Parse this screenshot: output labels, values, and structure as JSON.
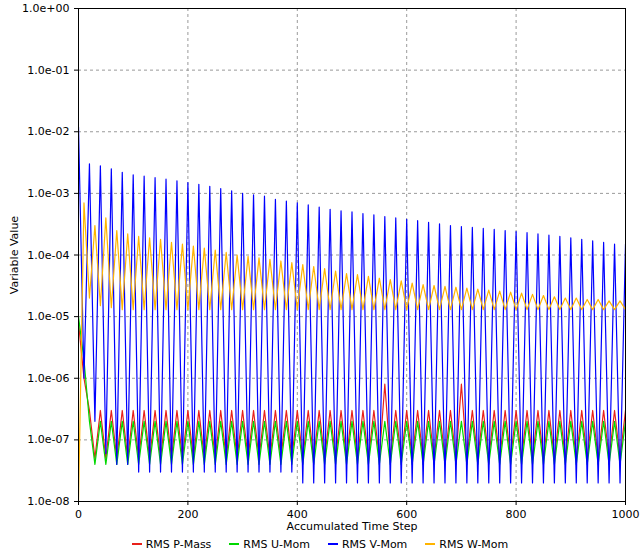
{
  "chart_data": {
    "type": "line",
    "x_label": "Accumulated Time Step",
    "y_label": "Variable Value",
    "log": "y",
    "grid": true,
    "legend": "bottom",
    "xlim": [
      0,
      1000
    ],
    "ylim": [
      1e-08,
      1
    ],
    "xticks": [
      0,
      200,
      400,
      600,
      800,
      1000
    ],
    "yticks": [
      {
        "value": 1e-08,
        "label": "1.0e-08"
      },
      {
        "value": 1e-07,
        "label": "1.0e-07"
      },
      {
        "value": 1e-06,
        "label": "1.0e-06"
      },
      {
        "value": 1e-05,
        "label": "1.0e-05"
      },
      {
        "value": 0.0001,
        "label": "1.0e-04"
      },
      {
        "value": 0.001,
        "label": "1.0e-03"
      },
      {
        "value": 0.01,
        "label": "1.0e-02"
      },
      {
        "value": 0.1,
        "label": "1.0e-01"
      },
      {
        "value": 1,
        "label": "1.0e+00"
      }
    ],
    "x": [
      0,
      10,
      20,
      30,
      40,
      50,
      60,
      70,
      80,
      90,
      100,
      110,
      120,
      130,
      140,
      150,
      160,
      170,
      180,
      190,
      200,
      210,
      220,
      230,
      240,
      250,
      260,
      270,
      280,
      290,
      300,
      310,
      320,
      330,
      340,
      350,
      360,
      370,
      380,
      390,
      400,
      410,
      420,
      430,
      440,
      450,
      460,
      470,
      480,
      490,
      500,
      510,
      520,
      530,
      540,
      550,
      560,
      570,
      580,
      590,
      600,
      610,
      620,
      630,
      640,
      650,
      660,
      670,
      680,
      690,
      700,
      710,
      720,
      730,
      740,
      750,
      760,
      770,
      780,
      790,
      800,
      810,
      820,
      830,
      840,
      850,
      860,
      870,
      880,
      890,
      900,
      910,
      920,
      930,
      940,
      950,
      960,
      970,
      980,
      990,
      1000
    ],
    "series": [
      {
        "name": "RMS P-Mass",
        "color": "#e8201a",
        "values": [
          8e-06,
          1e-06,
          3e-07,
          5e-08,
          3e-07,
          5e-08,
          3e-07,
          5e-08,
          3e-07,
          5e-08,
          3e-07,
          5e-08,
          3e-07,
          5e-08,
          3e-07,
          5e-08,
          3e-07,
          5e-08,
          3e-07,
          5e-08,
          3e-07,
          5e-08,
          3e-07,
          5e-08,
          3e-07,
          5e-08,
          3e-07,
          5e-08,
          3e-07,
          5e-08,
          3e-07,
          5e-08,
          3e-07,
          5e-08,
          3e-07,
          5e-08,
          3e-07,
          5e-08,
          3e-07,
          5e-08,
          3e-07,
          5e-08,
          3e-07,
          5e-08,
          3e-07,
          5e-08,
          3e-07,
          5e-08,
          3e-07,
          5e-08,
          3e-07,
          5e-08,
          3e-07,
          5e-08,
          3e-07,
          5e-08,
          8e-07,
          5e-08,
          3e-07,
          5e-08,
          3e-07,
          5e-08,
          3e-07,
          5e-08,
          3e-07,
          5e-08,
          3e-07,
          5e-08,
          3e-07,
          5e-08,
          8e-07,
          5e-08,
          3e-07,
          5e-08,
          3e-07,
          5e-08,
          3e-07,
          5e-08,
          3e-07,
          5e-08,
          3e-07,
          5e-08,
          3e-07,
          5e-08,
          3e-07,
          5e-08,
          3e-07,
          5e-08,
          3e-07,
          5e-08,
          3e-07,
          5e-08,
          3e-07,
          5e-08,
          3e-07,
          5e-08,
          3e-07,
          5e-08,
          3e-07,
          5e-08,
          3e-07
        ]
      },
      {
        "name": "RMS U-Mom",
        "color": "#00d800",
        "values": [
          1e-05,
          2e-06,
          2e-07,
          4e-08,
          2e-07,
          4e-08,
          2e-07,
          4e-08,
          2e-07,
          4e-08,
          2e-07,
          4e-08,
          2e-07,
          4e-08,
          2e-07,
          4e-08,
          2e-07,
          4e-08,
          2e-07,
          4e-08,
          2e-07,
          4e-08,
          2e-07,
          4e-08,
          2e-07,
          4e-08,
          2e-07,
          4e-08,
          2e-07,
          4e-08,
          2e-07,
          4e-08,
          2e-07,
          4e-08,
          2e-07,
          4e-08,
          2e-07,
          4e-08,
          2e-07,
          4e-08,
          2e-07,
          4e-08,
          2e-07,
          4e-08,
          2e-07,
          4e-08,
          2e-07,
          4e-08,
          2e-07,
          4e-08,
          2e-07,
          4e-08,
          2e-07,
          4e-08,
          2e-07,
          4e-08,
          2e-07,
          4e-08,
          2e-07,
          4e-08,
          2e-07,
          4e-08,
          2e-07,
          4e-08,
          2e-07,
          4e-08,
          2e-07,
          4e-08,
          2e-07,
          4e-08,
          2e-07,
          4e-08,
          2e-07,
          4e-08,
          2e-07,
          4e-08,
          2e-07,
          4e-08,
          2e-07,
          4e-08,
          2e-07,
          4e-08,
          2e-07,
          4e-08,
          2e-07,
          4e-08,
          2e-07,
          4e-08,
          2e-07,
          4e-08,
          2e-07,
          4e-08,
          2e-07,
          4e-08,
          2e-07,
          4e-08,
          2e-07,
          4e-08,
          2e-07,
          4e-08,
          2e-07
        ]
      },
      {
        "name": "RMS V-Mom",
        "color": "#0000ff",
        "values": [
          0.012,
          1e-06,
          0.003,
          2e-07,
          0.0028,
          6e-08,
          0.0025,
          4e-08,
          0.0022,
          4e-08,
          0.002,
          3e-08,
          0.0019,
          3e-08,
          0.0018,
          3e-08,
          0.0017,
          3e-08,
          0.0016,
          3e-08,
          0.0015,
          3e-08,
          0.0014,
          3e-08,
          0.0013,
          3e-08,
          0.0012,
          3e-08,
          0.0011,
          3e-08,
          0.001,
          3e-08,
          0.00095,
          3e-08,
          0.0009,
          3e-08,
          0.0008,
          3e-08,
          0.00075,
          3e-08,
          0.0007,
          2e-08,
          0.00065,
          2e-08,
          0.0006,
          2e-08,
          0.00055,
          2e-08,
          0.00052,
          2e-08,
          0.0005,
          2e-08,
          0.00047,
          2e-08,
          0.00045,
          2e-08,
          0.00042,
          2e-08,
          0.0004,
          2e-08,
          0.00038,
          2e-08,
          0.00036,
          2e-08,
          0.00034,
          2e-08,
          0.00032,
          2e-08,
          0.0003,
          2e-08,
          0.00029,
          2e-08,
          0.00028,
          2e-08,
          0.00027,
          2e-08,
          0.00026,
          2e-08,
          0.00025,
          2e-08,
          0.00024,
          2e-08,
          0.00023,
          2e-08,
          0.00022,
          2e-08,
          0.00021,
          2e-08,
          0.0002,
          2e-08,
          0.00019,
          2e-08,
          0.00018,
          2e-08,
          0.00017,
          2e-08,
          0.00016,
          2e-08,
          0.00015,
          2e-08,
          0.00015
        ]
      },
      {
        "name": "RMS W-Mom",
        "color": "#ffb400",
        "values": [
          1e-08,
          0.0007,
          2e-05,
          0.0003,
          1.5e-05,
          0.0004,
          1.4e-05,
          0.00025,
          1.3e-05,
          0.00022,
          1.3e-05,
          0.0002,
          1.3e-05,
          0.00019,
          1.3e-05,
          0.00018,
          1.3e-05,
          0.00016,
          1.3e-05,
          0.00015,
          1.3e-05,
          0.00014,
          1.3e-05,
          0.00013,
          1.3e-05,
          0.00012,
          1.3e-05,
          0.00011,
          1.3e-05,
          0.0001,
          1.3e-05,
          9.5e-05,
          1.3e-05,
          9e-05,
          1.3e-05,
          8.5e-05,
          1.3e-05,
          8e-05,
          1.3e-05,
          7.5e-05,
          1.3e-05,
          7e-05,
          1.3e-05,
          6.5e-05,
          1.3e-05,
          6e-05,
          1.3e-05,
          5.5e-05,
          1.3e-05,
          5e-05,
          1.3e-05,
          4.8e-05,
          1.3e-05,
          4.5e-05,
          1.3e-05,
          4.2e-05,
          1.3e-05,
          4e-05,
          1.3e-05,
          3.8e-05,
          1.3e-05,
          3.5e-05,
          1.3e-05,
          3.3e-05,
          1.3e-05,
          3.2e-05,
          1.3e-05,
          3.1e-05,
          1.3e-05,
          3e-05,
          1.3e-05,
          2.9e-05,
          1.3e-05,
          2.8e-05,
          1.3e-05,
          2.7e-05,
          1.3e-05,
          2.6e-05,
          1.3e-05,
          2.5e-05,
          1.3e-05,
          2.4e-05,
          1.3e-05,
          2.3e-05,
          1.3e-05,
          2.2e-05,
          1.3e-05,
          2.1e-05,
          1.3e-05,
          2e-05,
          1.3e-05,
          2e-05,
          1.3e-05,
          1.9e-05,
          1.3e-05,
          1.9e-05,
          1.3e-05,
          1.8e-05,
          1.3e-05,
          1.8e-05,
          1.3e-05
        ]
      }
    ]
  }
}
